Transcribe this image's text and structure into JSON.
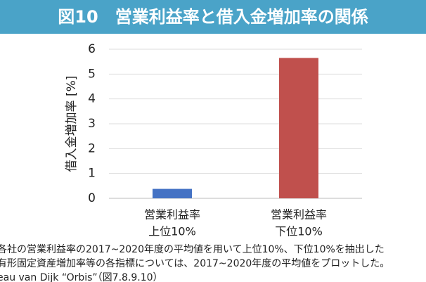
{
  "chart_data": {
    "type": "bar",
    "title": "図10　営業利益率と借入金増加率の関係",
    "y_label": "借入金増加率 [%]",
    "categories": [
      [
        "営業利益率",
        "上位10%"
      ],
      [
        "営業利益率",
        "下位10%"
      ]
    ],
    "values": [
      0.38,
      5.65
    ],
    "colors": [
      "#4472c4",
      "#c0504d"
    ],
    "ylim": [
      0,
      6
    ],
    "yticks": [
      0,
      1,
      2,
      3,
      4,
      5,
      6
    ],
    "grid": true,
    "notes": [
      "各社の営業利益率の2017~2020年度の平均値を用いて上位10%、下位10%を抽出した",
      "有形固定資産増加率等の各指標については、2017~2020年度の平均値をプロットした。",
      "eau van Dijk “Orbis”（図7.8.9.10）"
    ]
  }
}
